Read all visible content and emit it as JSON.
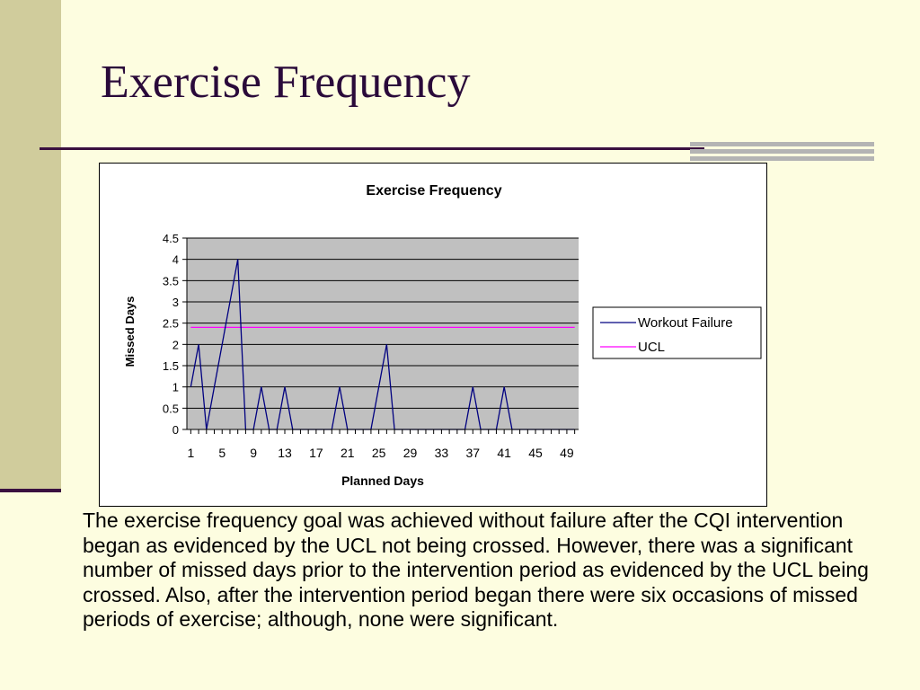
{
  "slide": {
    "title": "Exercise Frequency",
    "caption": "The exercise frequency goal was achieved without failure after the CQI intervention began as evidenced by the UCL not being crossed. However, there was a significant number of missed days prior to the intervention period as evidenced by the UCL being crossed.  Also, after the intervention period began there were six occasions of missed periods of exercise; although, none were significant."
  },
  "colors": {
    "background": "#fdfde0",
    "accent_dark": "#3a1040",
    "plot_area": "#c0c0c0",
    "workout_failure": "#000080",
    "ucl": "#ff00ff"
  },
  "chart_data": {
    "type": "line",
    "title": "Exercise Frequency",
    "xlabel": "Planned Days",
    "ylabel": "Missed Days",
    "x": [
      1,
      2,
      3,
      4,
      5,
      6,
      7,
      8,
      9,
      10,
      11,
      12,
      13,
      14,
      15,
      16,
      17,
      18,
      19,
      20,
      21,
      22,
      23,
      24,
      25,
      26,
      27,
      28,
      29,
      30,
      31,
      32,
      33,
      34,
      35,
      36,
      37,
      38,
      39,
      40,
      41,
      42,
      43,
      44,
      45,
      46,
      47,
      48,
      49,
      50
    ],
    "x_tick_labels": [
      "1",
      "5",
      "9",
      "13",
      "17",
      "21",
      "25",
      "29",
      "33",
      "37",
      "41",
      "45",
      "49"
    ],
    "y_tick_labels": [
      "0",
      "0.5",
      "1",
      "1.5",
      "2",
      "2.5",
      "3",
      "3.5",
      "4",
      "4.5"
    ],
    "ylim": [
      0,
      4.5
    ],
    "grid": "horizontal",
    "legend_position": "right",
    "series": [
      {
        "name": "Workout Failure",
        "color": "#000080",
        "values": [
          1,
          2,
          0,
          1,
          2,
          3,
          4,
          0,
          0,
          1,
          0,
          0,
          1,
          0,
          0,
          0,
          0,
          0,
          0,
          1,
          0,
          0,
          0,
          0,
          1,
          2,
          0,
          0,
          0,
          0,
          0,
          0,
          0,
          0,
          0,
          0,
          1,
          0,
          0,
          0,
          1,
          0,
          0,
          0,
          0,
          0,
          0,
          0,
          0,
          0
        ]
      },
      {
        "name": "UCL",
        "color": "#ff00ff",
        "values": [
          2.4,
          2.4,
          2.4,
          2.4,
          2.4,
          2.4,
          2.4,
          2.4,
          2.4,
          2.4,
          2.4,
          2.4,
          2.4,
          2.4,
          2.4,
          2.4,
          2.4,
          2.4,
          2.4,
          2.4,
          2.4,
          2.4,
          2.4,
          2.4,
          2.4,
          2.4,
          2.4,
          2.4,
          2.4,
          2.4,
          2.4,
          2.4,
          2.4,
          2.4,
          2.4,
          2.4,
          2.4,
          2.4,
          2.4,
          2.4,
          2.4,
          2.4,
          2.4,
          2.4,
          2.4,
          2.4,
          2.4,
          2.4,
          2.4,
          2.4
        ]
      }
    ]
  }
}
